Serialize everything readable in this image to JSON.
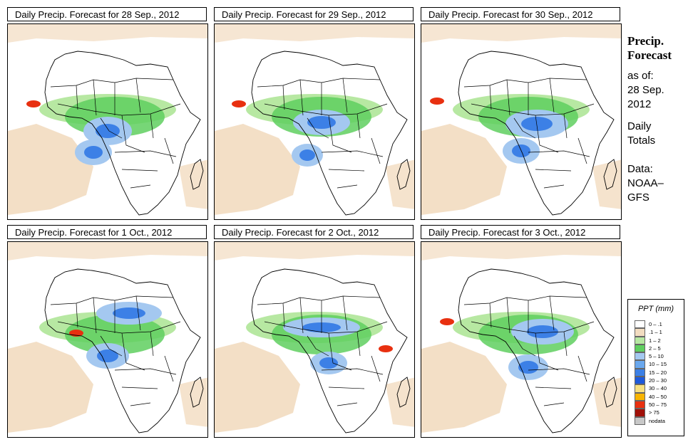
{
  "panels": [
    {
      "title": "Daily Precip. Forecast for  28 Sep., 2012"
    },
    {
      "title": "Daily Precip. Forecast for  29 Sep., 2012"
    },
    {
      "title": "Daily Precip. Forecast for  30 Sep., 2012"
    },
    {
      "title": "Daily Precip. Forecast for  1 Oct., 2012"
    },
    {
      "title": "Daily Precip. Forecast for  2 Oct., 2012"
    },
    {
      "title": "Daily Precip. Forecast for  3 Oct., 2012"
    }
  ],
  "side": {
    "title_line1": "Precip.",
    "title_line2": "Forecast",
    "asof_line1": "as of:",
    "asof_line2": "28 Sep.",
    "asof_line3": "2012",
    "totals_line1": "Daily",
    "totals_line2": "Totals",
    "data_line1": "Data:",
    "data_line2": "NOAA–",
    "data_line3": "GFS"
  },
  "legend": {
    "title": "PPT (mm)",
    "items": [
      {
        "label": "0 – .1",
        "color": "#ffffff"
      },
      {
        "label": ".1 – 1",
        "color": "#f2dcc0"
      },
      {
        "label": "1 – 2",
        "color": "#b7e8a2"
      },
      {
        "label": "2 – 5",
        "color": "#5fcf5f"
      },
      {
        "label": "5 – 10",
        "color": "#a4c8f0"
      },
      {
        "label": "10 – 15",
        "color": "#6aa8ee"
      },
      {
        "label": "15 – 20",
        "color": "#3c80e6"
      },
      {
        "label": "20 – 30",
        "color": "#1e5adc"
      },
      {
        "label": "30 – 40",
        "color": "#f8e080"
      },
      {
        "label": "40 – 50",
        "color": "#f8b400"
      },
      {
        "label": "50 – 75",
        "color": "#e83010"
      },
      {
        "label": "> 75",
        "color": "#a01008"
      },
      {
        "label": "nodata",
        "color": "#c8c8c8"
      }
    ]
  },
  "colors": {
    "dry": "#f2dcc0",
    "light": "#b7e8a2",
    "moderate": "#5fcf5f",
    "blue_light": "#a4c8f0",
    "blue": "#3c80e6",
    "red": "#e83010",
    "outline": "#000000"
  }
}
